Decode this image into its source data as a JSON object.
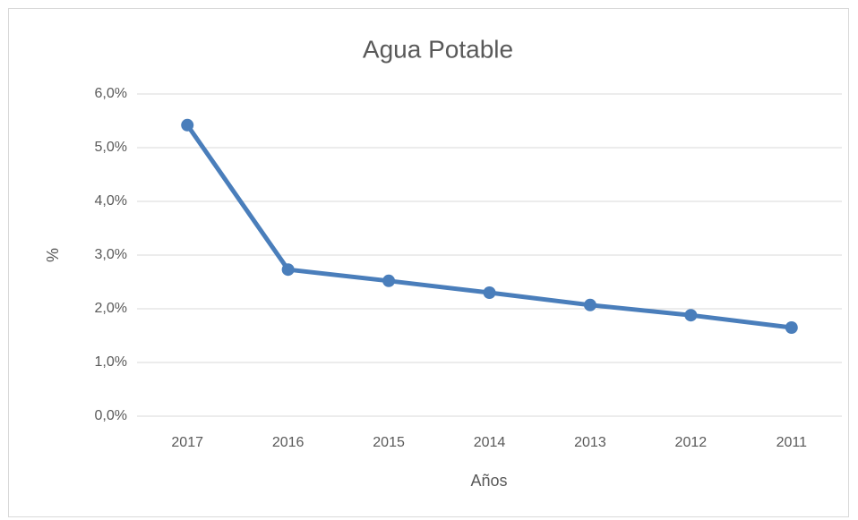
{
  "chart_data": {
    "type": "line",
    "title": "Agua Potable",
    "x_label": "Años",
    "y_label": "%",
    "categories": [
      "2017",
      "2016",
      "2015",
      "2014",
      "2013",
      "2012",
      "2011"
    ],
    "series": [
      {
        "name": "Agua Potable",
        "color": "#4a7ebb",
        "values": [
          5.42,
          2.73,
          2.52,
          2.3,
          2.07,
          1.88,
          1.65
        ]
      }
    ],
    "ylim": [
      0,
      6
    ],
    "yticks": [
      {
        "value": 0,
        "label": "0,0%"
      },
      {
        "value": 1,
        "label": "1,0%"
      },
      {
        "value": 2,
        "label": "2,0%"
      },
      {
        "value": 3,
        "label": "3,0%"
      },
      {
        "value": 4,
        "label": "4,0%"
      },
      {
        "value": 5,
        "label": "5,0%"
      },
      {
        "value": 6,
        "label": "6,0%"
      }
    ],
    "grid": true
  }
}
